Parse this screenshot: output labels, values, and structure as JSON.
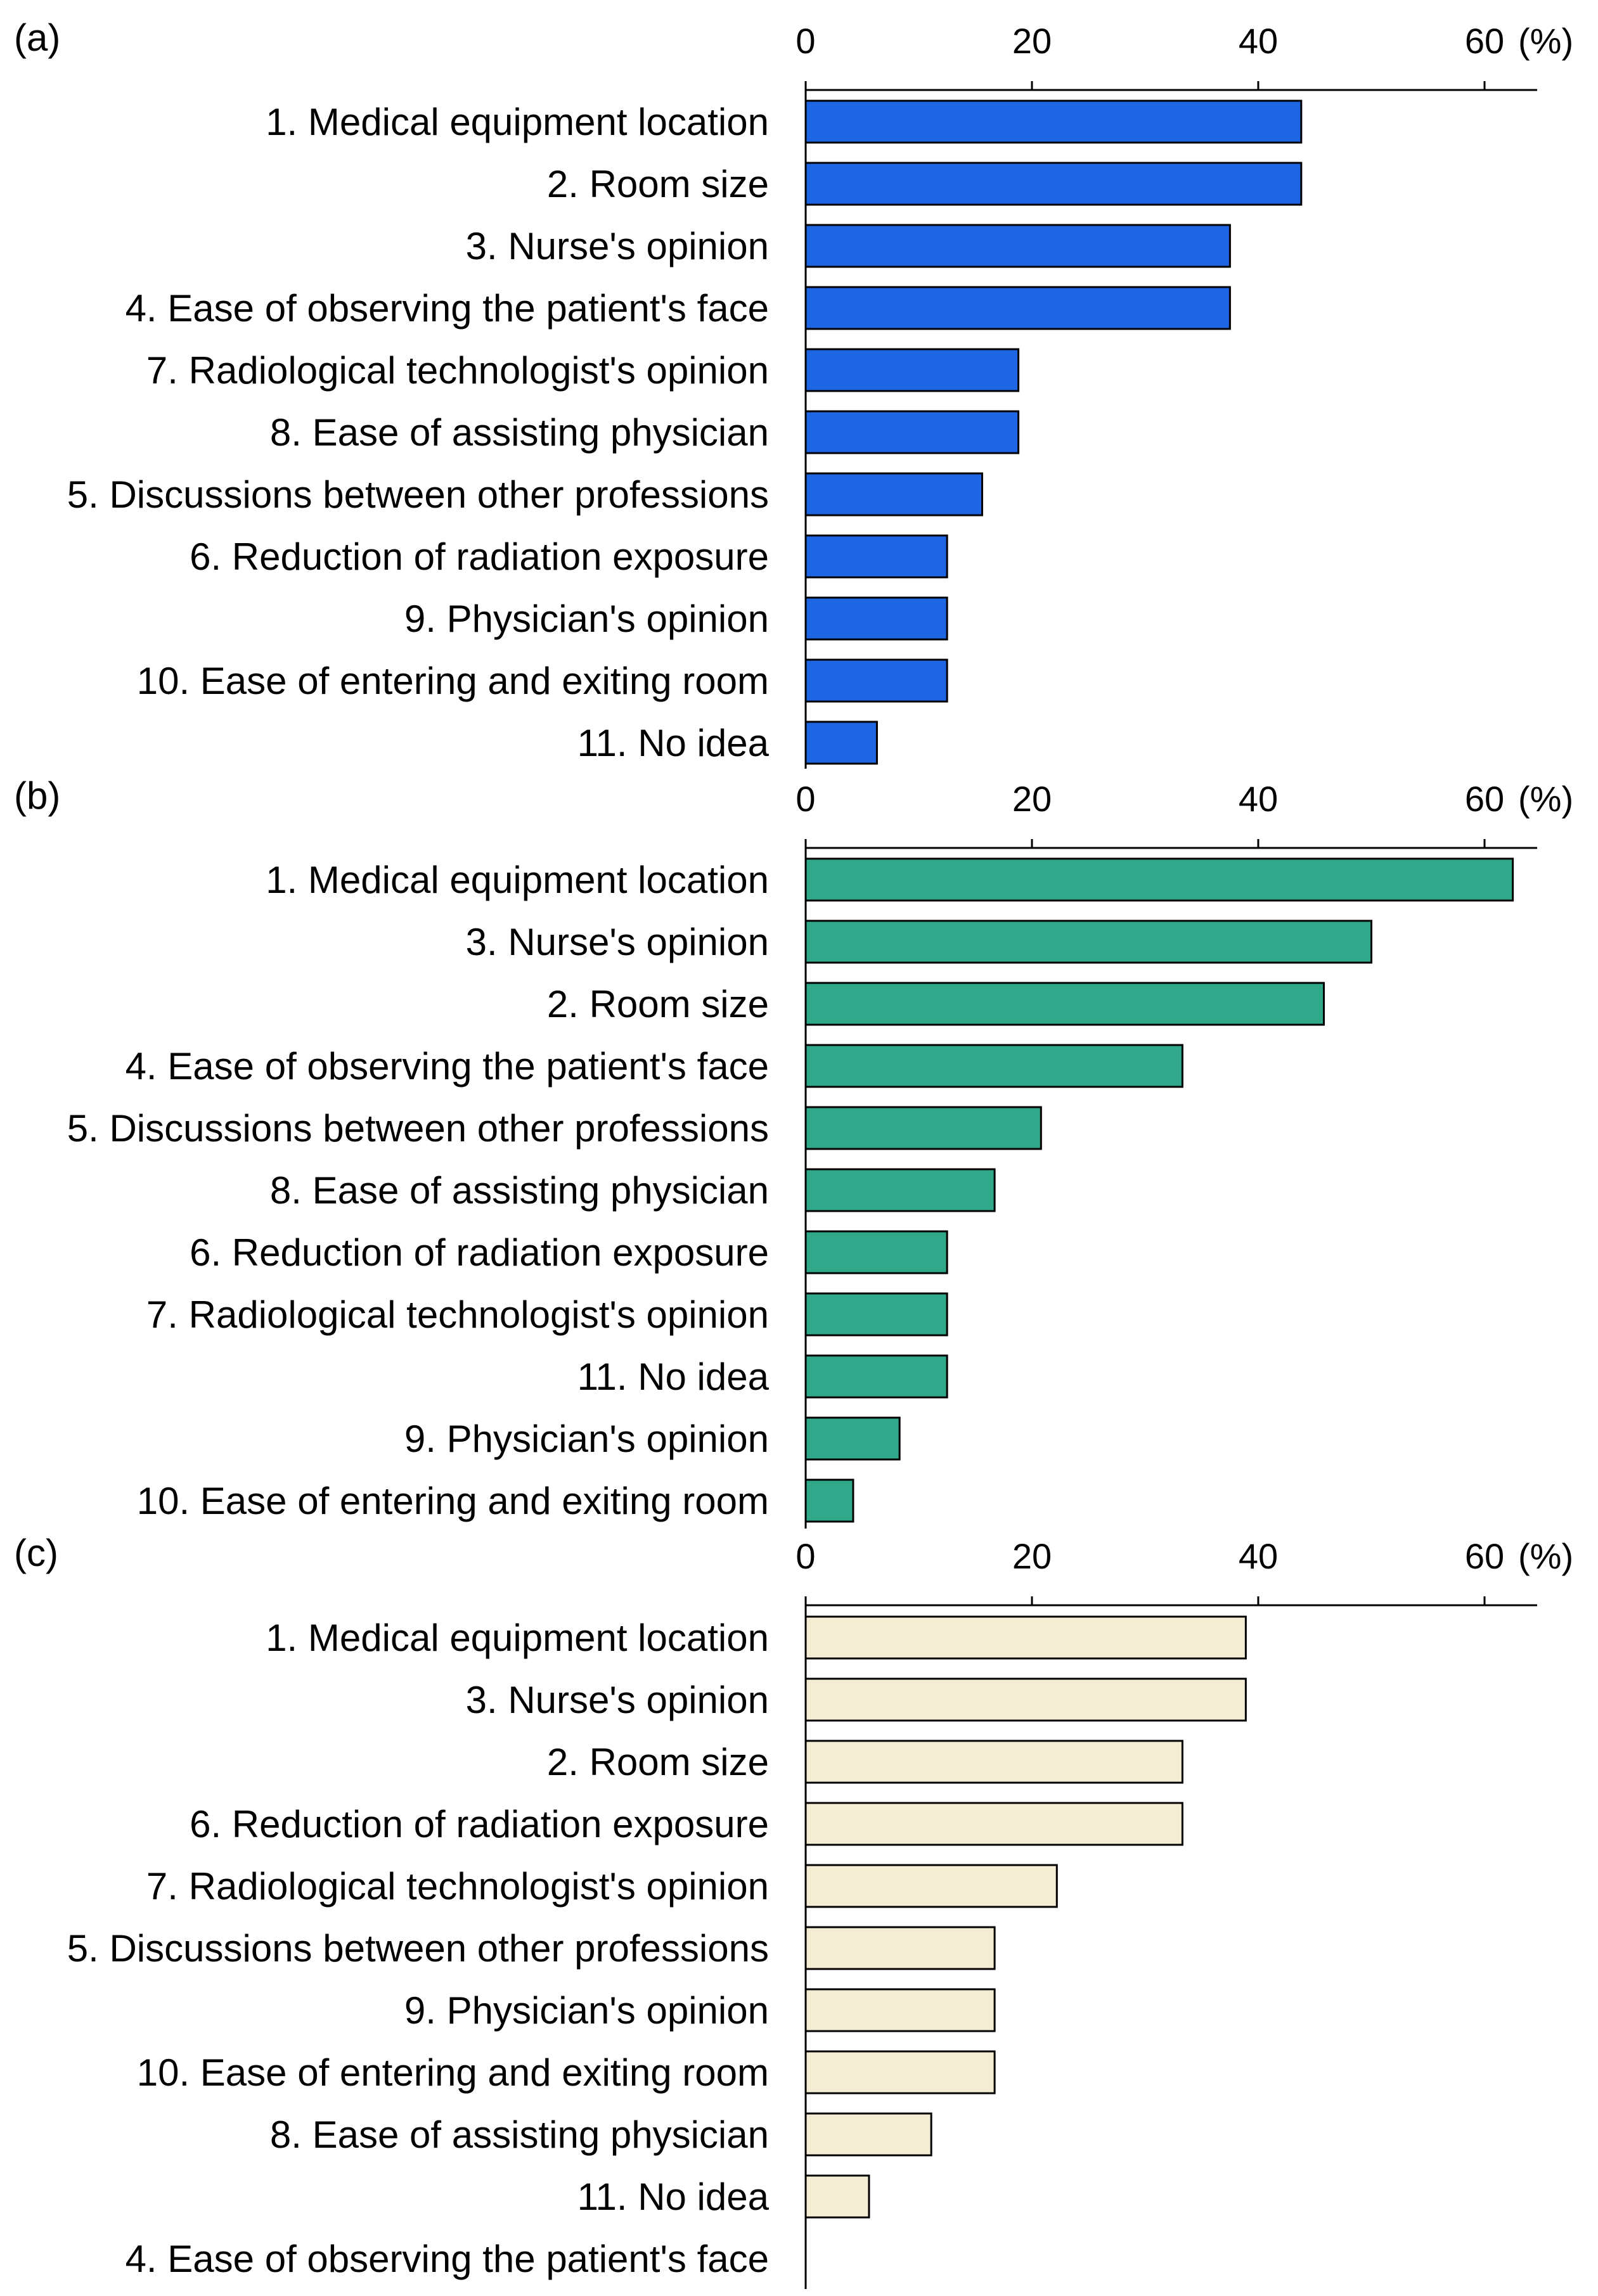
{
  "chart_data": [
    {
      "type": "bar",
      "orientation": "horizontal",
      "panel_label": "(a)",
      "unit_label": "(%)",
      "xlim": [
        0,
        65
      ],
      "xticks": [
        0,
        20,
        40,
        60
      ],
      "bar_color": "#1f66e5",
      "categories": [
        "1. Medical equipment location",
        "2. Room size",
        "3. Nurse's opinion",
        "4. Ease of observing the patient's face",
        "7. Radiological technologist's opinion",
        "8. Ease of assisting physician",
        "5. Discussions between other professions",
        "6. Reduction of radiation exposure",
        "9. Physician's opinion",
        "10. Ease of entering and exiting room",
        "11. No idea"
      ],
      "values": [
        43.8,
        43.8,
        37.5,
        37.5,
        18.8,
        18.8,
        15.6,
        12.5,
        12.5,
        12.5,
        6.3
      ]
    },
    {
      "type": "bar",
      "orientation": "horizontal",
      "panel_label": "(b)",
      "unit_label": "(%)",
      "xlim": [
        0,
        65
      ],
      "xticks": [
        0,
        20,
        40,
        60
      ],
      "bar_color": "#32a88a",
      "categories": [
        "1. Medical equipment location",
        "3. Nurse's opinion",
        "2. Room size",
        "4. Ease of observing the patient's face",
        "5. Discussions between other professions",
        "8. Ease of assisting physician",
        "6. Reduction of radiation exposure",
        "7. Radiological technologist's opinion",
        "11. No idea",
        "9. Physician's opinion",
        "10. Ease of entering and exiting room"
      ],
      "values": [
        62.5,
        50.0,
        45.8,
        33.3,
        20.8,
        16.7,
        12.5,
        12.5,
        12.5,
        8.3,
        4.2
      ]
    },
    {
      "type": "bar",
      "orientation": "horizontal",
      "panel_label": "(c)",
      "unit_label": "(%)",
      "xlim": [
        0,
        65
      ],
      "xticks": [
        0,
        20,
        40,
        60
      ],
      "bar_color": "#f5edd3",
      "categories": [
        "1. Medical equipment location",
        "3. Nurse's opinion",
        "2. Room size",
        "6. Reduction of radiation exposure",
        "7. Radiological technologist's opinion",
        "5. Discussions between other professions",
        "9. Physician's opinion",
        "10. Ease of entering and exiting room",
        "8. Ease of assisting physician",
        "11. No idea",
        "4. Ease of observing the patient's face"
      ],
      "values": [
        38.9,
        38.9,
        33.3,
        33.3,
        22.2,
        16.7,
        16.7,
        16.7,
        11.1,
        5.6,
        0
      ]
    }
  ]
}
